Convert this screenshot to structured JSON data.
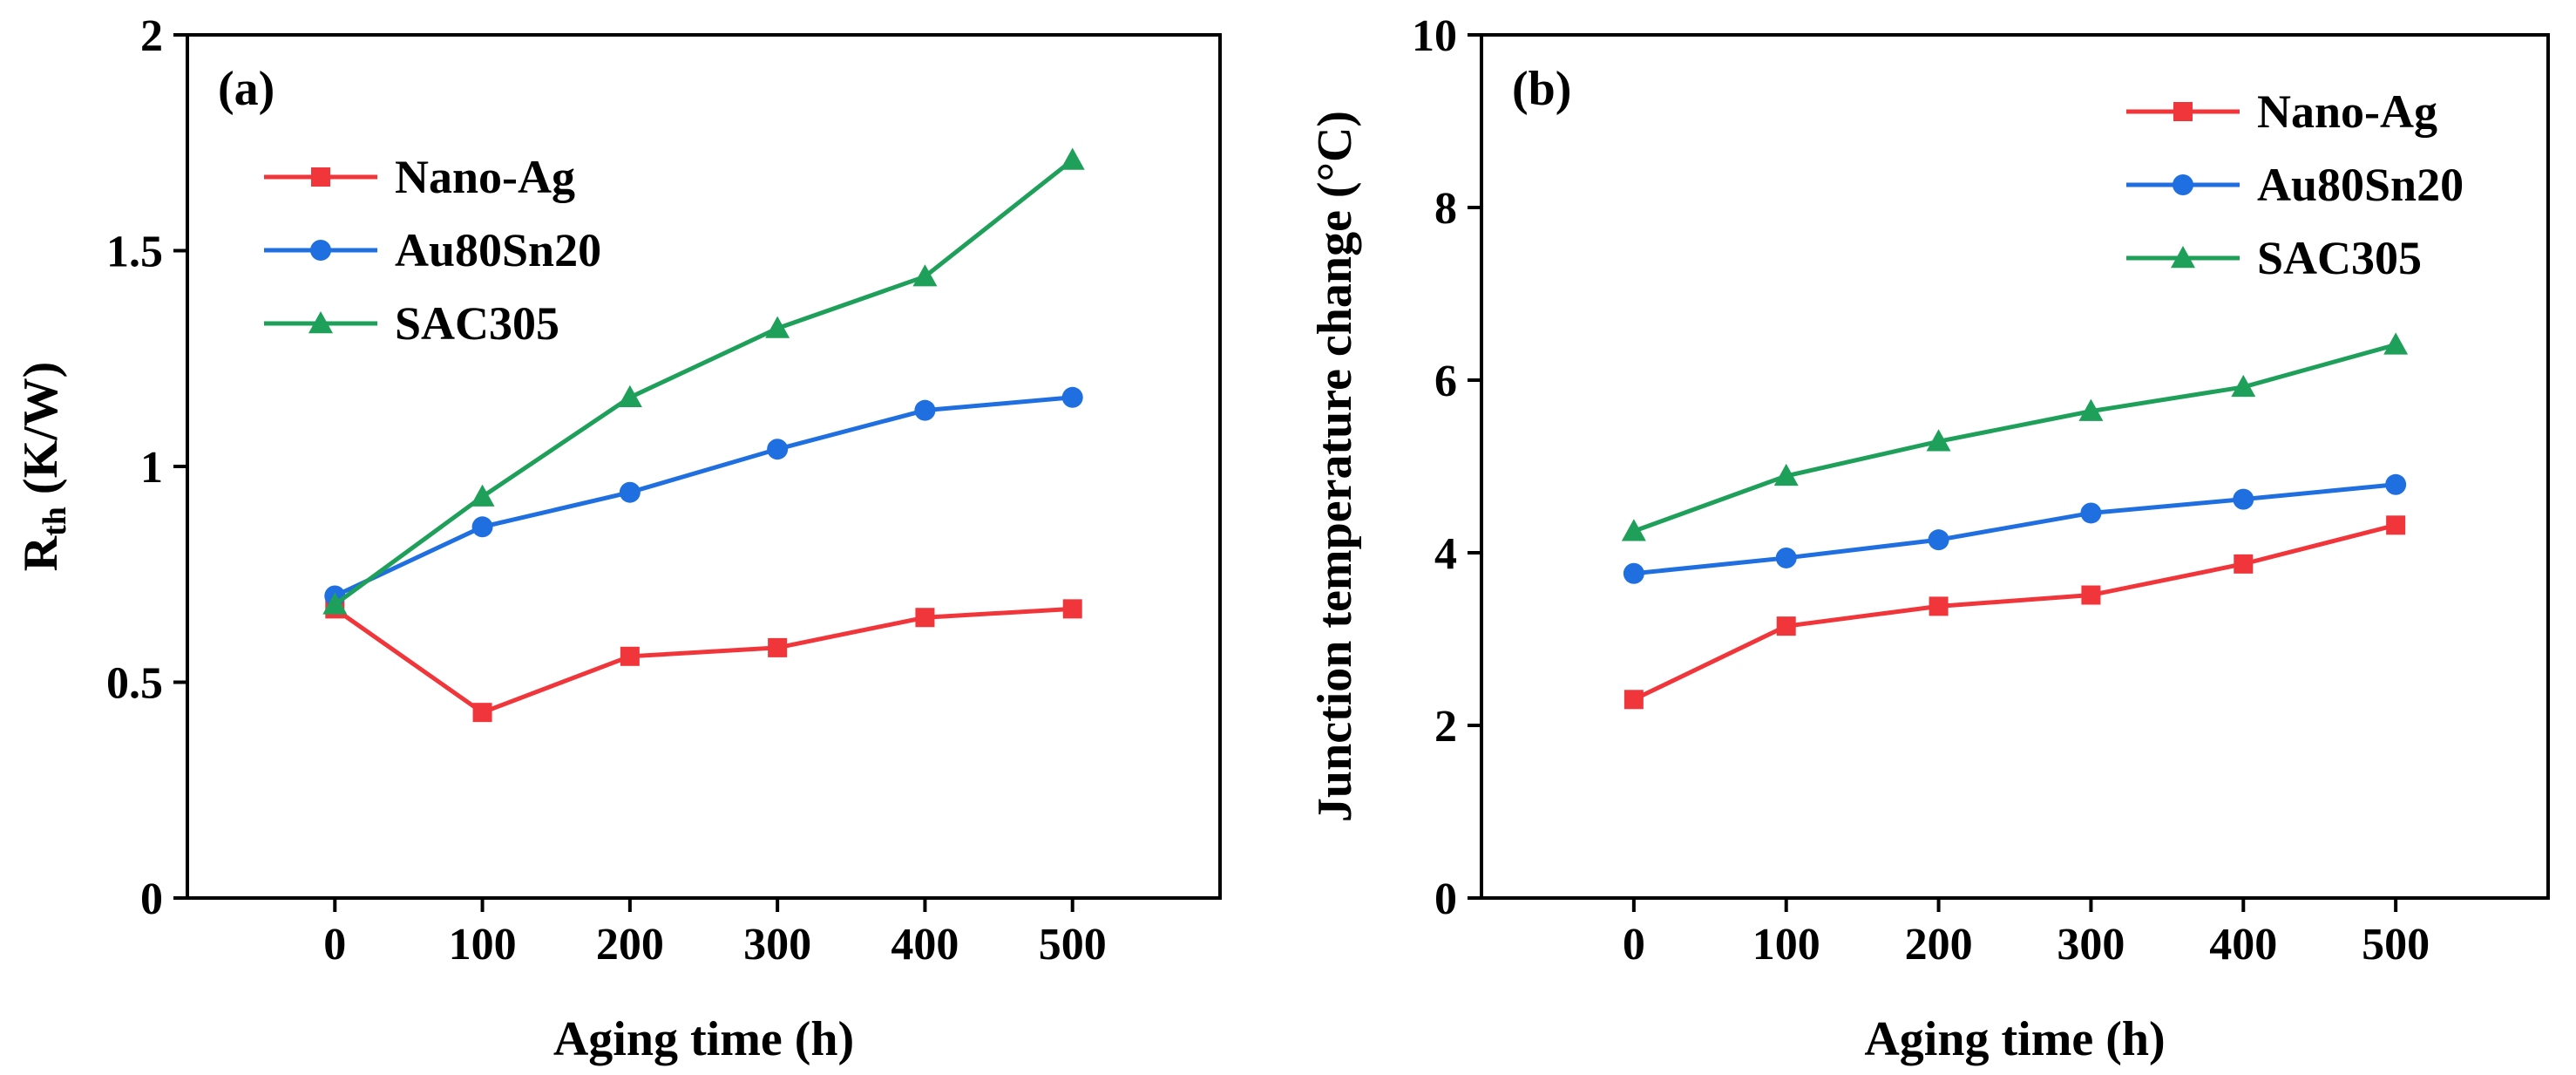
{
  "chart_data": [
    {
      "type": "line",
      "panel_label": "(a)",
      "x": [
        0,
        100,
        200,
        300,
        400,
        500
      ],
      "xlabel": "Aging time (h)",
      "ylabel_main": "R",
      "ylabel_sub": "th",
      "ylabel_rest": " (K/W)",
      "xlim": [
        -100,
        600
      ],
      "ylim": [
        0,
        2
      ],
      "xticks": [
        0,
        100,
        200,
        300,
        400,
        500
      ],
      "yticks": [
        0,
        0.5,
        1,
        1.5,
        2
      ],
      "ytick_labels": [
        "0",
        "0.5",
        "1",
        "1.5",
        "2"
      ],
      "legend_position": "upper-left",
      "series": [
        {
          "name": "Nano-Ag",
          "color": "#f0363a",
          "marker": "square",
          "values": [
            0.67,
            0.43,
            0.56,
            0.58,
            0.65,
            0.67
          ]
        },
        {
          "name": "Au80Sn20",
          "color": "#1f6fe0",
          "marker": "circle",
          "values": [
            0.7,
            0.86,
            0.94,
            1.04,
            1.13,
            1.16
          ]
        },
        {
          "name": "SAC305",
          "color": "#1fa05a",
          "marker": "triangle",
          "values": [
            0.68,
            0.93,
            1.16,
            1.32,
            1.44,
            1.71
          ]
        }
      ]
    },
    {
      "type": "line",
      "panel_label": "(b)",
      "x": [
        0,
        100,
        200,
        300,
        400,
        500
      ],
      "xlabel": "Aging time (h)",
      "ylabel": "Junction temperature change (°C)",
      "xlim": [
        -100,
        600
      ],
      "ylim": [
        0,
        10
      ],
      "xticks": [
        0,
        100,
        200,
        300,
        400,
        500
      ],
      "yticks": [
        0,
        2,
        4,
        6,
        8,
        10
      ],
      "ytick_labels": [
        "0",
        "2",
        "4",
        "6",
        "8",
        "10"
      ],
      "legend_position": "upper-right",
      "series": [
        {
          "name": "Nano-Ag",
          "color": "#f0363a",
          "marker": "square",
          "values": [
            2.3,
            3.15,
            3.38,
            3.51,
            3.87,
            4.32
          ]
        },
        {
          "name": "Au80Sn20",
          "color": "#1f6fe0",
          "marker": "circle",
          "values": [
            3.76,
            3.94,
            4.15,
            4.46,
            4.62,
            4.79
          ]
        },
        {
          "name": "SAC305",
          "color": "#1fa05a",
          "marker": "triangle",
          "values": [
            4.25,
            4.89,
            5.29,
            5.64,
            5.92,
            6.41
          ]
        }
      ]
    }
  ]
}
